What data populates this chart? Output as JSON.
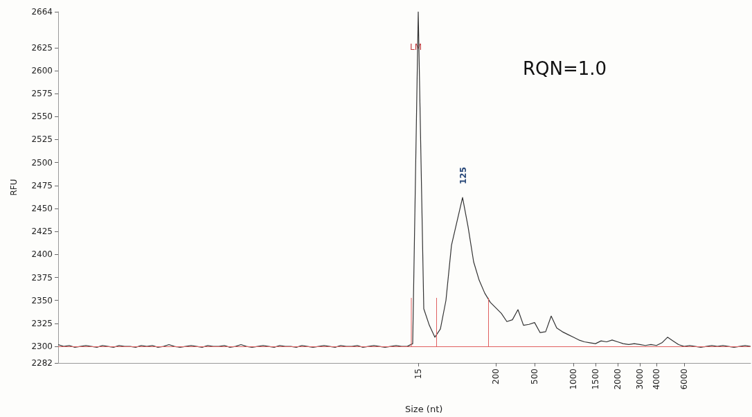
{
  "chart_data": {
    "type": "line",
    "xlabel": "Size (nt)",
    "ylabel": "RFU",
    "annotations": [
      "LM",
      "125",
      "RQN=1.0"
    ],
    "categories": [
      null,
      null,
      null,
      null,
      null,
      null,
      null,
      null,
      null,
      null,
      null,
      null,
      null,
      null,
      null,
      null,
      null,
      null,
      null,
      null,
      null,
      null,
      null,
      null,
      null,
      null,
      null,
      null,
      null,
      null,
      null,
      null,
      null,
      null,
      null,
      null,
      null,
      null,
      null,
      null,
      null,
      null,
      null,
      null,
      null,
      null,
      null,
      null,
      null,
      null,
      null,
      null,
      null,
      null,
      null,
      null,
      null,
      null,
      null,
      null,
      null,
      null,
      null,
      null,
      null,
      "15",
      null,
      null,
      null,
      null,
      null,
      null,
      null,
      null,
      null,
      null,
      null,
      null,
      null,
      "200",
      null,
      null,
      null,
      null,
      null,
      null,
      "500",
      null,
      null,
      null,
      null,
      null,
      null,
      "1000",
      null,
      null,
      null,
      "1500",
      null,
      null,
      null,
      "2000",
      null,
      null,
      null,
      "3000",
      null,
      null,
      "4000",
      null,
      null,
      null,
      null,
      "6000",
      null,
      null,
      null,
      null,
      null,
      null,
      null,
      null,
      null,
      null,
      null,
      null
    ],
    "values": [
      2302,
      2300,
      2301,
      2299,
      2300,
      2301,
      2300,
      2299,
      2301,
      2300,
      2299,
      2301,
      2300,
      2300,
      2299,
      2301,
      2300,
      2301,
      2299,
      2300,
      2302,
      2300,
      2299,
      2300,
      2301,
      2300,
      2299,
      2301,
      2300,
      2300,
      2301,
      2299,
      2300,
      2302,
      2300,
      2299,
      2300,
      2301,
      2300,
      2299,
      2301,
      2300,
      2300,
      2299,
      2301,
      2300,
      2299,
      2300,
      2301,
      2300,
      2299,
      2301,
      2300,
      2300,
      2301,
      2299,
      2300,
      2301,
      2300,
      2299,
      2300,
      2301,
      2300,
      2300,
      2303,
      2664,
      2341,
      2323,
      2310,
      2319,
      2350,
      2410,
      2436,
      2462,
      2430,
      2392,
      2372,
      2358,
      2348,
      2342,
      2336,
      2327,
      2329,
      2340,
      2323,
      2324,
      2326,
      2315,
      2316,
      2333,
      2320,
      2316,
      2313,
      2310,
      2307,
      2305,
      2304,
      2303,
      2306,
      2305,
      2307,
      2305,
      2303,
      2302,
      2303,
      2302,
      2301,
      2302,
      2301,
      2304,
      2310,
      2306,
      2302,
      2300,
      2301,
      2300,
      2299,
      2300,
      2301,
      2300,
      2301,
      2300,
      2299,
      2300,
      2301,
      2300
    ],
    "color": "#333333",
    "ylim": [
      2282,
      2664
    ],
    "yticks": [
      2282,
      2300,
      2325,
      2350,
      2375,
      2400,
      2425,
      2450,
      2475,
      2500,
      2525,
      2550,
      2575,
      2600,
      2625,
      2664
    ],
    "ref_lines": [
      {
        "axis": "y",
        "value": 2300,
        "color": "#e06060"
      }
    ],
    "grid": false,
    "marker": "none",
    "line_style": "solid"
  }
}
